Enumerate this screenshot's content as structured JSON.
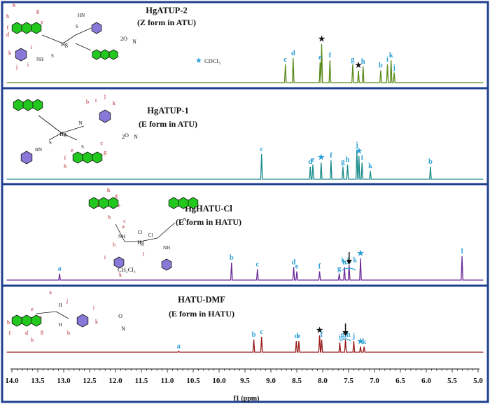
{
  "chart_data": {
    "type": "line",
    "xlabel": "f1 (ppm)",
    "xlim": [
      14.0,
      5.0
    ],
    "x_ticks": [
      "14.0",
      "13.5",
      "13.0",
      "12.5",
      "12.0",
      "11.5",
      "11.0",
      "10.5",
      "10.0",
      "9.5",
      "9.0",
      "8.5",
      "8.0",
      "7.5",
      "7.0",
      "6.5",
      "6.0",
      "5.5",
      "5.0"
    ],
    "colors": {
      "frame": "#1f3f8f",
      "peak_label": "#2a9fd6",
      "struct_label": "#b0202a",
      "ring": "#22c81e",
      "phenyl": "#8a78d8"
    },
    "marker_legend": {
      "symbol": "★",
      "label": "CDCl₃"
    },
    "series": [
      {
        "name": "HgATUP-2",
        "subtitle": "(Z form in ATU)",
        "solvent_label": "2",
        "color": "#5a8a1a",
        "peaks": [
          {
            "label": "c",
            "ppm": 8.72,
            "height": 0.45
          },
          {
            "label": "d",
            "ppm": 8.57,
            "height": 0.6
          },
          {
            "label": "e",
            "ppm": 8.05,
            "height": 0.5
          },
          {
            "label": "★",
            "ppm": 8.02,
            "height": 0.95,
            "marker": true
          },
          {
            "label": "f",
            "ppm": 7.86,
            "height": 0.55
          },
          {
            "label": "g",
            "ppm": 7.42,
            "height": 0.45
          },
          {
            "label": "★",
            "ppm": 7.31,
            "height": 0.3,
            "marker": true
          },
          {
            "label": "h",
            "ppm": 7.22,
            "height": 0.4
          },
          {
            "label": "b",
            "ppm": 6.88,
            "height": 0.3
          },
          {
            "label": "i",
            "ppm": 6.75,
            "height": 0.45
          },
          {
            "label": "k",
            "ppm": 6.68,
            "height": 0.55
          },
          {
            "label": "j",
            "ppm": 6.62,
            "height": 0.25
          }
        ]
      },
      {
        "name": "HgATUP-1",
        "subtitle": "(E form in ATU)",
        "solvent_label": "2",
        "color": "#1a8a8a",
        "peaks": [
          {
            "label": "c",
            "ppm": 9.18,
            "height": 0.6
          },
          {
            "label": "d",
            "ppm": 8.24,
            "height": 0.3
          },
          {
            "label": "e",
            "ppm": 8.19,
            "height": 0.35
          },
          {
            "label": "★",
            "ppm": 8.03,
            "height": 0.4,
            "marker": true
          },
          {
            "label": "f",
            "ppm": 7.84,
            "height": 0.45
          },
          {
            "label": "g",
            "ppm": 7.61,
            "height": 0.3
          },
          {
            "label": "h",
            "ppm": 7.52,
            "height": 0.35
          },
          {
            "label": "j",
            "ppm": 7.34,
            "height": 0.7
          },
          {
            "label": "★",
            "ppm": 7.3,
            "height": 0.55,
            "marker": true
          },
          {
            "label": "i",
            "ppm": 7.24,
            "height": 0.4
          },
          {
            "label": "k",
            "ppm": 7.08,
            "height": 0.2
          },
          {
            "label": "b",
            "ppm": 5.92,
            "height": 0.3
          }
        ]
      },
      {
        "name": "HgHATU-Cl",
        "subtitle": "(E form in HATU)",
        "solvent_label": "CH₂Cl₂",
        "color": "#6a2a9a",
        "peaks": [
          {
            "label": "a",
            "ppm": 13.08,
            "height": 0.15
          },
          {
            "label": "b",
            "ppm": 9.76,
            "height": 0.4
          },
          {
            "label": "c",
            "ppm": 9.26,
            "height": 0.25
          },
          {
            "label": "d",
            "ppm": 8.56,
            "height": 0.3
          },
          {
            "label": "e",
            "ppm": 8.5,
            "height": 0.2
          },
          {
            "label": "f",
            "ppm": 8.06,
            "height": 0.2
          },
          {
            "label": "g",
            "ppm": 7.68,
            "height": 0.15
          },
          {
            "label": "h",
            "ppm": 7.58,
            "height": 0.3
          },
          {
            "label": "i, j, k",
            "ppm": 7.49,
            "height": 0.35
          },
          {
            "label": "★",
            "ppm": 7.27,
            "height": 0.5,
            "marker": true
          },
          {
            "label": "l",
            "ppm": 5.31,
            "height": 0.55
          }
        ]
      },
      {
        "name": "HATU-DMF",
        "subtitle": "(E form in HATU)",
        "solvent_label": "",
        "color": "#9a1a1a",
        "peaks": [
          {
            "label": "a",
            "ppm": 10.78,
            "height": 0.04
          },
          {
            "label": "b",
            "ppm": 9.33,
            "height": 0.45
          },
          {
            "label": "c",
            "ppm": 9.18,
            "height": 0.55
          },
          {
            "label": "d",
            "ppm": 8.51,
            "height": 0.4
          },
          {
            "label": "e",
            "ppm": 8.46,
            "height": 0.4
          },
          {
            "label": "★",
            "ppm": 8.06,
            "height": 0.6,
            "marker": true
          },
          {
            "label": "f",
            "ppm": 8.02,
            "height": 0.45
          },
          {
            "label": "i",
            "ppm": 7.67,
            "height": 0.35
          },
          {
            "label": "g,h",
            "ppm": 7.56,
            "height": 0.45
          },
          {
            "label": "j",
            "ppm": 7.4,
            "height": 0.4
          },
          {
            "label": "★",
            "ppm": 7.27,
            "height": 0.2,
            "marker": true
          },
          {
            "label": "k",
            "ppm": 7.2,
            "height": 0.2
          }
        ]
      }
    ]
  }
}
